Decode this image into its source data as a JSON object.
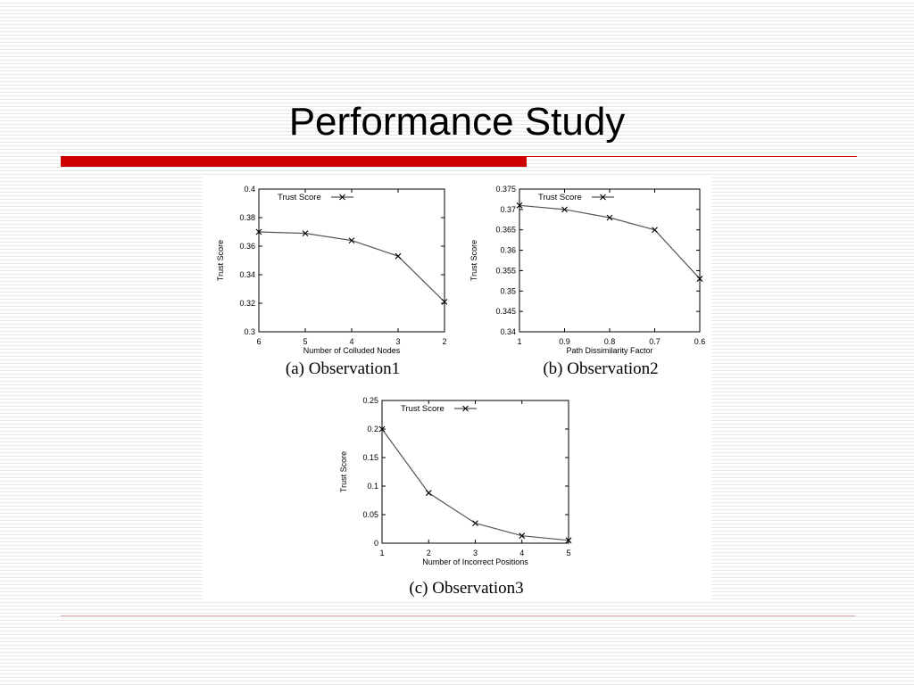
{
  "slide": {
    "title": "Performance Study",
    "colors": {
      "title_bar": "#cc0000",
      "background_stripe": "#e6e6e6"
    }
  },
  "chart_data": [
    {
      "type": "line",
      "caption": "(a) Observation1",
      "xlabel": "Number of Colluded Nodes",
      "ylabel": "Trust Score",
      "x": [
        6,
        5,
        4,
        3,
        2
      ],
      "x_reversed": true,
      "xticks": [
        "6",
        "5",
        "4",
        "3",
        "2"
      ],
      "ylim": [
        0.3,
        0.4
      ],
      "yticks": [
        "0.3",
        "0.32",
        "0.34",
        "0.36",
        "0.38",
        "0.4"
      ],
      "grid": false,
      "legend_position": "top-left",
      "series": [
        {
          "name": "Trust Score",
          "marker": "x",
          "values": [
            0.37,
            0.369,
            0.364,
            0.353,
            0.321
          ]
        }
      ]
    },
    {
      "type": "line",
      "caption": "(b) Observation2",
      "xlabel": "Path Dissimilarity Factor",
      "ylabel": "Trust Score",
      "x": [
        1,
        0.9,
        0.8,
        0.7,
        0.6
      ],
      "x_reversed": true,
      "xticks": [
        "1",
        "0.9",
        "0.8",
        "0.7",
        "0.6"
      ],
      "ylim": [
        0.34,
        0.375
      ],
      "yticks": [
        "0.34",
        "0.345",
        "0.35",
        "0.355",
        "0.36",
        "0.365",
        "0.37",
        "0.375"
      ],
      "grid": false,
      "legend_position": "top-left",
      "series": [
        {
          "name": "Trust Score",
          "marker": "x",
          "values": [
            0.371,
            0.37,
            0.368,
            0.365,
            0.353
          ]
        }
      ]
    },
    {
      "type": "line",
      "caption": "(c) Observation3",
      "xlabel": "Number of Incorrect Positions",
      "ylabel": "Trust Score",
      "x": [
        1,
        2,
        3,
        4,
        5
      ],
      "x_reversed": false,
      "xticks": [
        "1",
        "2",
        "3",
        "4",
        "5"
      ],
      "ylim": [
        0,
        0.25
      ],
      "yticks": [
        "0",
        "0.05",
        "0.1",
        "0.15",
        "0.2",
        "0.25"
      ],
      "grid": false,
      "legend_position": "top-left",
      "series": [
        {
          "name": "Trust Score",
          "marker": "x",
          "values": [
            0.2,
            0.088,
            0.035,
            0.013,
            0.005
          ]
        }
      ]
    }
  ]
}
